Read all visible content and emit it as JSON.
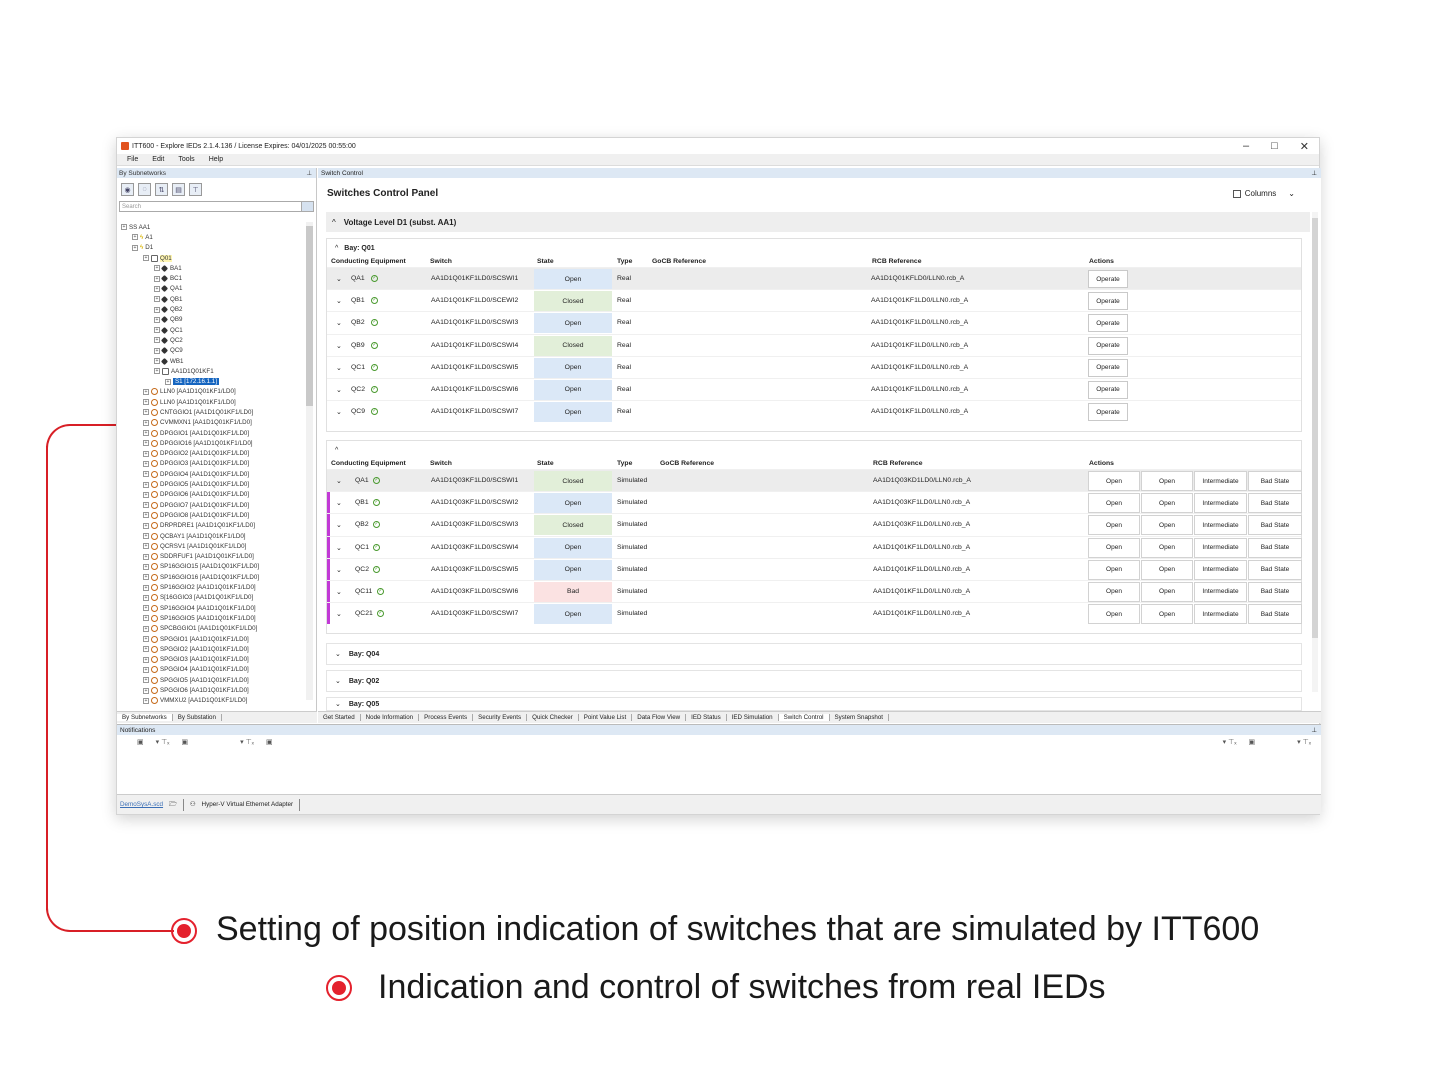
{
  "window": {
    "title": "ITT600 - Explore IEDs 2.1.4.136  / License Expires:  04/01/2025 00:55:00",
    "controls": [
      "–",
      "□",
      "✕"
    ]
  },
  "menu": [
    "File",
    "Edit",
    "Tools",
    "Help"
  ],
  "left_panel": {
    "header": "By Subnetworks",
    "search_placeholder": "Search",
    "tabs": [
      "By Subnetworks",
      "By Substation"
    ],
    "tree": [
      {
        "indent": 0,
        "label": "SS  AA1",
        "icon": "none"
      },
      {
        "indent": 1,
        "label": "A1",
        "icon": "bolt"
      },
      {
        "indent": 1,
        "label": "D1",
        "icon": "bolt"
      },
      {
        "indent": 2,
        "label": "Q01",
        "icon": "bay-box",
        "hl": true
      },
      {
        "indent": 3,
        "label": "BA1",
        "icon": "bay"
      },
      {
        "indent": 3,
        "label": "BC1",
        "icon": "bay"
      },
      {
        "indent": 3,
        "label": "QA1",
        "icon": "bay"
      },
      {
        "indent": 3,
        "label": "QB1",
        "icon": "bay"
      },
      {
        "indent": 3,
        "label": "QB2",
        "icon": "bay"
      },
      {
        "indent": 3,
        "label": "QB9",
        "icon": "bay"
      },
      {
        "indent": 3,
        "label": "QC1",
        "icon": "bay"
      },
      {
        "indent": 3,
        "label": "QC2",
        "icon": "bay"
      },
      {
        "indent": 3,
        "label": "QC9",
        "icon": "bay"
      },
      {
        "indent": 3,
        "label": "WB1",
        "icon": "bay"
      },
      {
        "indent": 3,
        "label": "AA1D1Q01KF1",
        "icon": "ied"
      },
      {
        "indent": 4,
        "label": "S1 [172.16.1.1]",
        "icon": "none",
        "sel": true
      },
      {
        "indent": 2,
        "label": "LLN0  [AA1D1Q01KF1/LD0]",
        "icon": "lln"
      },
      {
        "indent": 2,
        "label": "LLN0  [AA1D1Q01KF1/LD0]",
        "icon": "lln"
      },
      {
        "indent": 2,
        "label": "CNTGGIO1  [AA1D1Q01KF1/LD0]",
        "icon": "ln"
      },
      {
        "indent": 2,
        "label": "CVMMXN1  [AA1D1Q01KF1/LD0]",
        "icon": "ln"
      },
      {
        "indent": 2,
        "label": "DPGGIO1  [AA1D1Q01KF1/LD0]",
        "icon": "ln"
      },
      {
        "indent": 2,
        "label": "DPGGIO16  [AA1D1Q01KF1/LD0]",
        "icon": "ln"
      },
      {
        "indent": 2,
        "label": "DPGGIO2  [AA1D1Q01KF1/LD0]",
        "icon": "ln"
      },
      {
        "indent": 2,
        "label": "DPGGIO3  [AA1D1Q01KF1/LD0]",
        "icon": "ln"
      },
      {
        "indent": 2,
        "label": "DPGGIO4  [AA1D1Q01KF1/LD0]",
        "icon": "ln"
      },
      {
        "indent": 2,
        "label": "DPGGIO5  [AA1D1Q01KF1/LD0]",
        "icon": "ln"
      },
      {
        "indent": 2,
        "label": "DPGGIO6  [AA1D1Q01KF1/LD0]",
        "icon": "ln"
      },
      {
        "indent": 2,
        "label": "DPGGIO7  [AA1D1Q01KF1/LD0]",
        "icon": "ln"
      },
      {
        "indent": 2,
        "label": "DPGGIO8  [AA1D1Q01KF1/LD0]",
        "icon": "ln"
      },
      {
        "indent": 2,
        "label": "DRPRDRE1  [AA1D1Q01KF1/LD0]",
        "icon": "ln"
      },
      {
        "indent": 2,
        "label": "QCBAY1  [AA1D1Q01KF1/LD0]",
        "icon": "ln"
      },
      {
        "indent": 2,
        "label": "QCRSV1  [AA1D1Q01KF1/LD0]",
        "icon": "ln"
      },
      {
        "indent": 2,
        "label": "SDDRFUF1  [AA1D1Q01KF1/LD0]",
        "icon": "ln"
      },
      {
        "indent": 2,
        "label": "SP16GGIO15  [AA1D1Q01KF1/LD0]",
        "icon": "ln"
      },
      {
        "indent": 2,
        "label": "SP16GGIO16  [AA1D1Q01KF1/LD0]",
        "icon": "ln"
      },
      {
        "indent": 2,
        "label": "SP16GGIO2  [AA1D1Q01KF1/LD0]",
        "icon": "ln"
      },
      {
        "indent": 2,
        "label": "S[16GGIO3  [AA1D1Q01KF1/LD0]",
        "icon": "ln"
      },
      {
        "indent": 2,
        "label": "SP16GGIO4  [AA1D1Q01KF1/LD0]",
        "icon": "ln"
      },
      {
        "indent": 2,
        "label": "SP16GGIO5  [AA1D1Q01KF1/LD0]",
        "icon": "ln"
      },
      {
        "indent": 2,
        "label": "SPCBGGIO1  [AA1D1Q01KF1/LD0]",
        "icon": "ln"
      },
      {
        "indent": 2,
        "label": "SPGGIO1  [AA1D1Q01KF1/LD0]",
        "icon": "ln"
      },
      {
        "indent": 2,
        "label": "SPGGIO2  [AA1D1Q01KF1/LD0]",
        "icon": "ln"
      },
      {
        "indent": 2,
        "label": "SPGGIO3  [AA1D1Q01KF1/LD0]",
        "icon": "ln"
      },
      {
        "indent": 2,
        "label": "SPGGIO4  [AA1D1Q01KF1/LD0]",
        "icon": "ln"
      },
      {
        "indent": 2,
        "label": "SPGGIO5  [AA1D1Q01KF1/LD0]",
        "icon": "ln"
      },
      {
        "indent": 2,
        "label": "SPGGIO6  [AA1D1Q01KF1/LD0]",
        "icon": "ln"
      },
      {
        "indent": 2,
        "label": "VMMXU2  [AA1D1Q01KF1/LD0]",
        "icon": "ln"
      }
    ]
  },
  "main": {
    "header": "Switch Control",
    "panel_title": "Switches Control Panel",
    "columns_button": "Columns",
    "voltage_level": "Voltage Level D1 (subst. AA1)",
    "col_headers": {
      "equipment": "Conducting Equipment",
      "switch": "Switch",
      "state": "State",
      "type": "Type",
      "gocb": "GoCB Reference",
      "rcb": "RCB Reference",
      "actions": "Actions"
    },
    "bay1": {
      "title": "Bay: Q01",
      "operate_label": "Operate",
      "rows": [
        {
          "eq": "QA1",
          "sw": "AA1D1Q01KF1LD0/SCSWI1",
          "state": "Open",
          "type": "Real",
          "rcb": "AA1D1Q01KFLD0/LLN0.rcb_A"
        },
        {
          "eq": "QB1",
          "sw": "AA1D1Q01KF1LD0/SCEWI2",
          "state": "Closed",
          "type": "Real",
          "rcb": "AA1D1Q01KF1LD0/LLN0.rcb_A"
        },
        {
          "eq": "QB2",
          "sw": "AA1D1Q01KF1LD0/SCSWI3",
          "state": "Open",
          "type": "Real",
          "rcb": "AA1D1Q01KF1LD0/LLN0.rcb_A"
        },
        {
          "eq": "QB9",
          "sw": "AA1D1Q01KF1LD0/SCSWI4",
          "state": "Closed",
          "type": "Real",
          "rcb": "AA1D1Q01KF1LD0/LLN0.rcb_A"
        },
        {
          "eq": "QC1",
          "sw": "AA1D1Q01KF1LD0/SCSWI5",
          "state": "Open",
          "type": "Real",
          "rcb": "AA1D1Q01KF1LD0/LLN0.rcb_A"
        },
        {
          "eq": "QC2",
          "sw": "AA1D1Q01KF1LD0/SCSWI6",
          "state": "Open",
          "type": "Real",
          "rcb": "AA1D1Q01KF1LD0/LLN0.rcb_A"
        },
        {
          "eq": "QC9",
          "sw": "AA1D1Q01KF1LD0/SCSWI7",
          "state": "Open",
          "type": "Real",
          "rcb": "AA1D1Q01KF1LD0/LLN0.rcb_A"
        }
      ]
    },
    "bay2": {
      "actions": [
        "Open",
        "Open",
        "Intermediate",
        "Bad State"
      ],
      "rows": [
        {
          "eq": "QA1",
          "sw": "AA1D1Q03KF1LD0/SCSWI1",
          "state": "Closed",
          "type": "Simulated",
          "rcb": "AA1D1Q03KD1LD0/LLN0.rcb_A"
        },
        {
          "eq": "QB1",
          "sw": "AA1D1Q03KF1LD0/SCSWI2",
          "state": "Open",
          "type": "Simulated",
          "rcb": "AA1D1Q03KF1LD0/LLN0.rcb_A"
        },
        {
          "eq": "QB2",
          "sw": "AA1D1Q03KF1LD0/SCSWI3",
          "state": "Closed",
          "type": "Simulated",
          "rcb": "AA1D1Q03KF1LD0/LLN0.rcb_A"
        },
        {
          "eq": "QC1",
          "sw": "AA1D1Q03KF1LD0/SCSWI4",
          "state": "Open",
          "type": "Simulated",
          "rcb": "AA1D1Q01KF1LD0/LLN0.rcb_A"
        },
        {
          "eq": "QC2",
          "sw": "AA1D1Q03KF1LD0/SCSWI5",
          "state": "Open",
          "type": "Simulated",
          "rcb": "AA1D1Q01KF1LD0/LLN0.rcb_A"
        },
        {
          "eq": "QC11",
          "sw": "AA1D1Q03KF1LD0/SCSWI6",
          "state": "Bad",
          "type": "Simulated",
          "rcb": "AA1D1Q01KF1LD0/LLN0.rcb_A"
        },
        {
          "eq": "QC21",
          "sw": "AA1D1Q03KF1LD0/SCSWI7",
          "state": "Open",
          "type": "Simulated",
          "rcb": "AA1D1Q01KF1LD0/LLN0.rcb_A"
        }
      ]
    },
    "collapsed_bays": [
      "Bay: Q04",
      "Bay: Q02",
      "Bay: Q05"
    ],
    "tabs": [
      "Get Started",
      "Node Information",
      "Process Events",
      "Security Events",
      "Quick Checker",
      "Point Value List",
      "Data Flow View",
      "IED Status",
      "IED Simulation",
      "Switch Control",
      "System Snapshot"
    ],
    "active_tab": "Switch Control"
  },
  "notifications": {
    "header": "Notifications"
  },
  "statusbar": {
    "file": "DemoSysA.scd",
    "adapter": "Hyper-V Virtual Ethernet Adapter"
  },
  "captions": {
    "line1": "Setting of position indication of switches that are simulated by ITT600",
    "line2": "Indication and control of switches from real IEDs"
  },
  "colors": {
    "accent_red": "#e4212d",
    "sim_marker": "#c23ad6",
    "open_state": "#dbe8f7",
    "closed_state": "#e2efd9",
    "bad_state": "#fbe2e2"
  }
}
